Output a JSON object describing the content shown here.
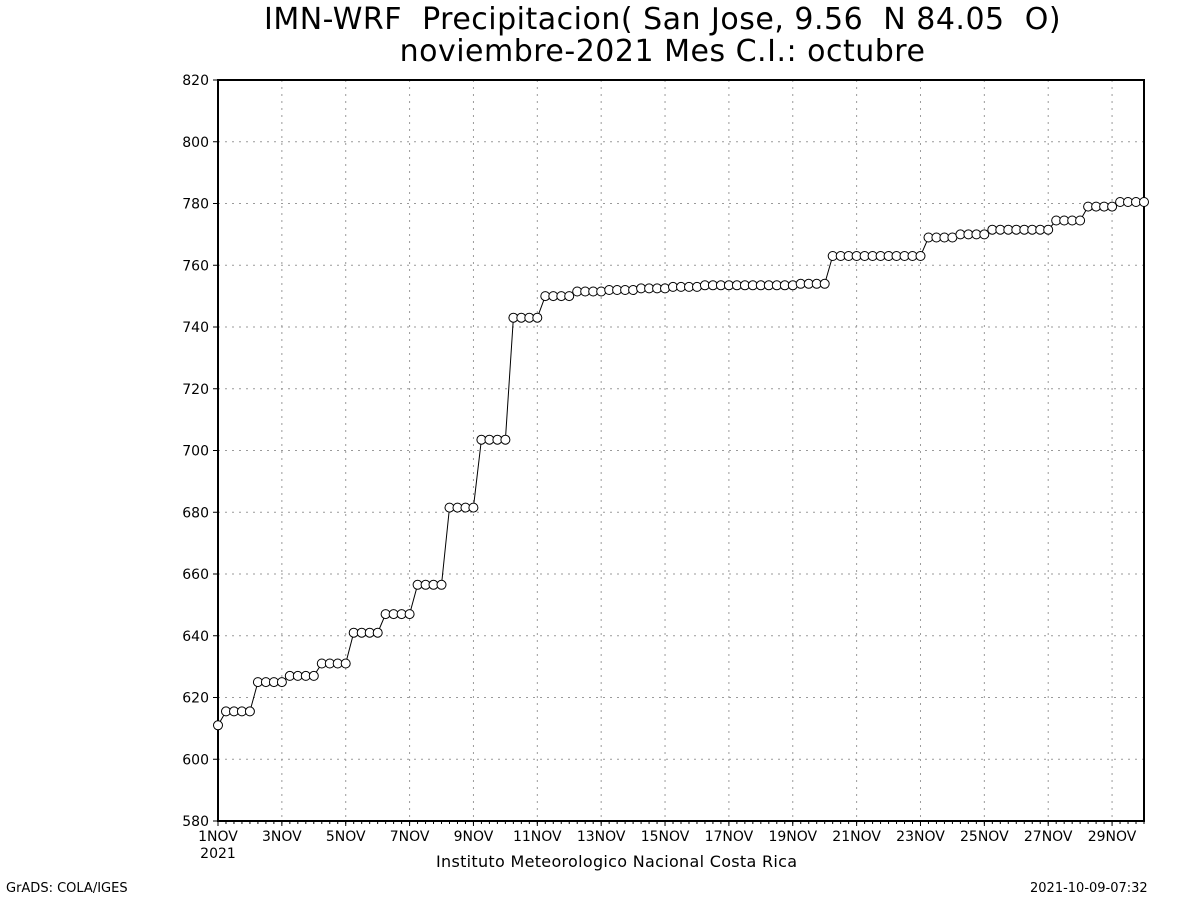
{
  "chart_data": {
    "type": "line",
    "title_line1": "IMN-WRF  Precipitacion( San Jose, 9.56  N 84.05  O)",
    "title_line2": "noviembre-2021 Mes C.I.: octubre",
    "xlabel": "",
    "ylabel": "",
    "ylim": [
      580,
      820
    ],
    "yticks": [
      580,
      600,
      620,
      640,
      660,
      680,
      700,
      720,
      740,
      760,
      780,
      800,
      820
    ],
    "xlim": [
      1,
      30
    ],
    "xticks": [
      {
        "day": 1,
        "label": "1NOV",
        "sublabel": "2021"
      },
      {
        "day": 3,
        "label": "3NOV"
      },
      {
        "day": 5,
        "label": "5NOV"
      },
      {
        "day": 7,
        "label": "7NOV"
      },
      {
        "day": 9,
        "label": "9NOV"
      },
      {
        "day": 11,
        "label": "11NOV"
      },
      {
        "day": 13,
        "label": "13NOV"
      },
      {
        "day": 15,
        "label": "15NOV"
      },
      {
        "day": 17,
        "label": "17NOV"
      },
      {
        "day": 19,
        "label": "19NOV"
      },
      {
        "day": 21,
        "label": "21NOV"
      },
      {
        "day": 23,
        "label": "23NOV"
      },
      {
        "day": 25,
        "label": "25NOV"
      },
      {
        "day": 27,
        "label": "27NOV"
      },
      {
        "day": 29,
        "label": "29NOV"
      }
    ],
    "grid": true,
    "marker": "open-circle",
    "series": [
      {
        "x_start_day": 1,
        "x_step_days": 0.25,
        "values": [
          611,
          615.5,
          615.5,
          615.5,
          615.5,
          625,
          625,
          625,
          625,
          627,
          627,
          627,
          627,
          631,
          631,
          631,
          631,
          641,
          641,
          641,
          641,
          647,
          647,
          647,
          647,
          656.5,
          656.5,
          656.5,
          656.5,
          681.5,
          681.5,
          681.5,
          681.5,
          703.5,
          703.5,
          703.5,
          703.5,
          743,
          743,
          743,
          743,
          750,
          750,
          750,
          750,
          751.5,
          751.5,
          751.5,
          751.5,
          752,
          752,
          752,
          752,
          752.5,
          752.5,
          752.5,
          752.5,
          753,
          753,
          753,
          753,
          753.5,
          753.5,
          753.5,
          753.5,
          753.5,
          753.5,
          753.5,
          753.5,
          753.5,
          753.5,
          753.5,
          753.5,
          754,
          754,
          754,
          754,
          763,
          763,
          763,
          763,
          763,
          763,
          763,
          763,
          763,
          763,
          763,
          763,
          769,
          769,
          769,
          769,
          770,
          770,
          770,
          770,
          771.5,
          771.5,
          771.5,
          771.5,
          771.5,
          771.5,
          771.5,
          771.5,
          774.5,
          774.5,
          774.5,
          774.5,
          779,
          779,
          779,
          779,
          780.5,
          780.5,
          780.5,
          780.5
        ]
      }
    ]
  },
  "footer": {
    "institute": "Instituto Meteorologico Nacional Costa Rica",
    "credit": "GrADS: COLA/IGES",
    "timestamp": "2021-10-09-07:32"
  }
}
